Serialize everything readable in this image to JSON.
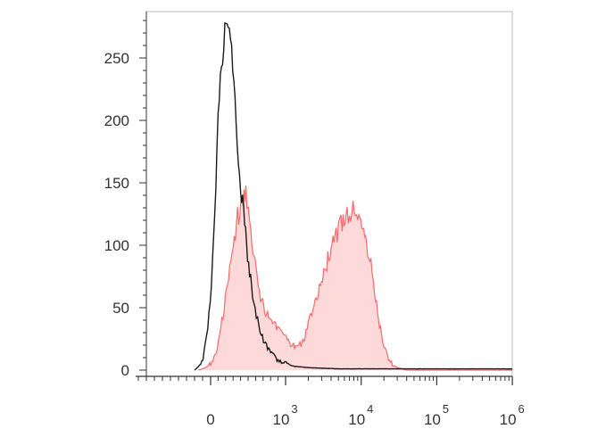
{
  "chart_data": {
    "type": "area",
    "title": "",
    "xlabel": "",
    "ylabel": "",
    "x_scale": "biexponential",
    "ylim": [
      0,
      288
    ],
    "grid": false,
    "legend": "none",
    "y_ticks": [
      {
        "value": 0,
        "label": "0"
      },
      {
        "value": 50,
        "label": "50"
      },
      {
        "value": 100,
        "label": "100"
      },
      {
        "value": 150,
        "label": "150"
      },
      {
        "value": 200,
        "label": "200"
      },
      {
        "value": 250,
        "label": "250"
      }
    ],
    "x_ticks": [
      {
        "value": 0,
        "label": "0",
        "sup": ""
      },
      {
        "value": 1000,
        "label": "10",
        "sup": "3"
      },
      {
        "value": 10000,
        "label": "10",
        "sup": "4"
      },
      {
        "value": 100000,
        "label": "10",
        "sup": "5"
      },
      {
        "value": 1000000,
        "label": "10",
        "sup": "6"
      }
    ],
    "series": [
      {
        "style": "filled",
        "stroke": "#f36b6b",
        "fill": "#fdd9d9",
        "points": [
          [
            -150,
            0
          ],
          [
            -60,
            2
          ],
          [
            0,
            5
          ],
          [
            60,
            12
          ],
          [
            120,
            28
          ],
          [
            180,
            50
          ],
          [
            240,
            75
          ],
          [
            300,
            100
          ],
          [
            360,
            122
          ],
          [
            420,
            133
          ],
          [
            470,
            140
          ],
          [
            520,
            115
          ],
          [
            580,
            88
          ],
          [
            650,
            62
          ],
          [
            720,
            48
          ],
          [
            800,
            40
          ],
          [
            880,
            34
          ],
          [
            960,
            28
          ],
          [
            1050,
            24
          ],
          [
            1200,
            20
          ],
          [
            1400,
            18
          ],
          [
            1600,
            21
          ],
          [
            1800,
            27
          ],
          [
            2000,
            38
          ],
          [
            2300,
            50
          ],
          [
            2600,
            60
          ],
          [
            3000,
            70
          ],
          [
            3500,
            86
          ],
          [
            4000,
            98
          ],
          [
            4500,
            106
          ],
          [
            5000,
            112
          ],
          [
            5600,
            118
          ],
          [
            6300,
            123
          ],
          [
            7000,
            126
          ],
          [
            7800,
            130
          ],
          [
            8700,
            128
          ],
          [
            9600,
            118
          ],
          [
            10500,
            110
          ],
          [
            11800,
            100
          ],
          [
            13000,
            90
          ],
          [
            14500,
            70
          ],
          [
            16000,
            52
          ],
          [
            18000,
            32
          ],
          [
            20000,
            20
          ],
          [
            23000,
            10
          ],
          [
            26000,
            5
          ],
          [
            30000,
            2
          ],
          [
            40000,
            0
          ],
          [
            100000,
            0
          ],
          [
            1000000,
            0
          ]
        ]
      },
      {
        "style": "line",
        "stroke": "#1a1a1a",
        "points": [
          [
            -200,
            0
          ],
          [
            -150,
            3
          ],
          [
            -110,
            6
          ],
          [
            -80,
            14
          ],
          [
            -50,
            26
          ],
          [
            -20,
            44
          ],
          [
            10,
            72
          ],
          [
            40,
            110
          ],
          [
            70,
            150
          ],
          [
            100,
            200
          ],
          [
            130,
            230
          ],
          [
            160,
            252
          ],
          [
            190,
            270
          ],
          [
            220,
            282
          ],
          [
            250,
            278
          ],
          [
            280,
            260
          ],
          [
            310,
            232
          ],
          [
            340,
            200
          ],
          [
            370,
            170
          ],
          [
            400,
            148
          ],
          [
            440,
            124
          ],
          [
            480,
            100
          ],
          [
            520,
            80
          ],
          [
            560,
            62
          ],
          [
            610,
            45
          ],
          [
            660,
            32
          ],
          [
            720,
            22
          ],
          [
            800,
            14
          ],
          [
            900,
            8
          ],
          [
            1050,
            5
          ],
          [
            1300,
            3
          ],
          [
            2000,
            2
          ],
          [
            5000,
            1
          ],
          [
            20000,
            1
          ],
          [
            100000,
            1
          ],
          [
            1000000,
            1
          ]
        ]
      }
    ]
  }
}
